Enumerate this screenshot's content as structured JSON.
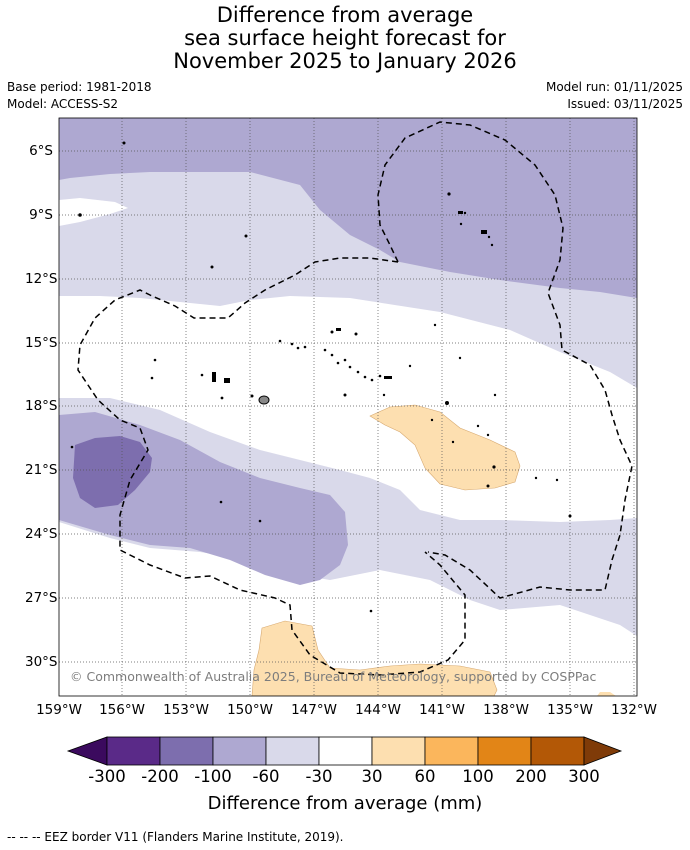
{
  "title_lines": [
    "Difference from average",
    "sea surface height forecast for",
    "November 2025 to January 2026"
  ],
  "base_period": "Base period: 1981-2018",
  "model": "Model: ACCESS-S2",
  "model_run": "Model run: 01/11/2025",
  "issued": "Issued: 03/11/2025",
  "lat_labels": [
    "6°S",
    "9°S",
    "12°S",
    "15°S",
    "18°S",
    "21°S",
    "24°S",
    "27°S",
    "30°S"
  ],
  "lon_labels": [
    "159°W",
    "156°W",
    "153°W",
    "150°W",
    "147°W",
    "144°W",
    "141°W",
    "138°W",
    "135°W",
    "132°W"
  ],
  "copyright": "© Commonwealth of Australia 2025, Bureau of Meteorology, supported by COSPPac",
  "colorbar": {
    "ticks": [
      "-300",
      "-200",
      "-100",
      "-60",
      "-30",
      "30",
      "60",
      "100",
      "200",
      "300"
    ],
    "colors": [
      "#5a2a88",
      "#7d6eae",
      "#aea8d1",
      "#d9d9ea",
      "#ffffff",
      "#fddfb0",
      "#fbb65c",
      "#e28517",
      "#b35806"
    ],
    "under_color": "#3b0a5e",
    "over_color": "#7f3b08",
    "title": "Difference from average (mm)"
  },
  "footer": "-- -- -- EEZ border V11 (Flanders Marine Institute, 2019)."
}
